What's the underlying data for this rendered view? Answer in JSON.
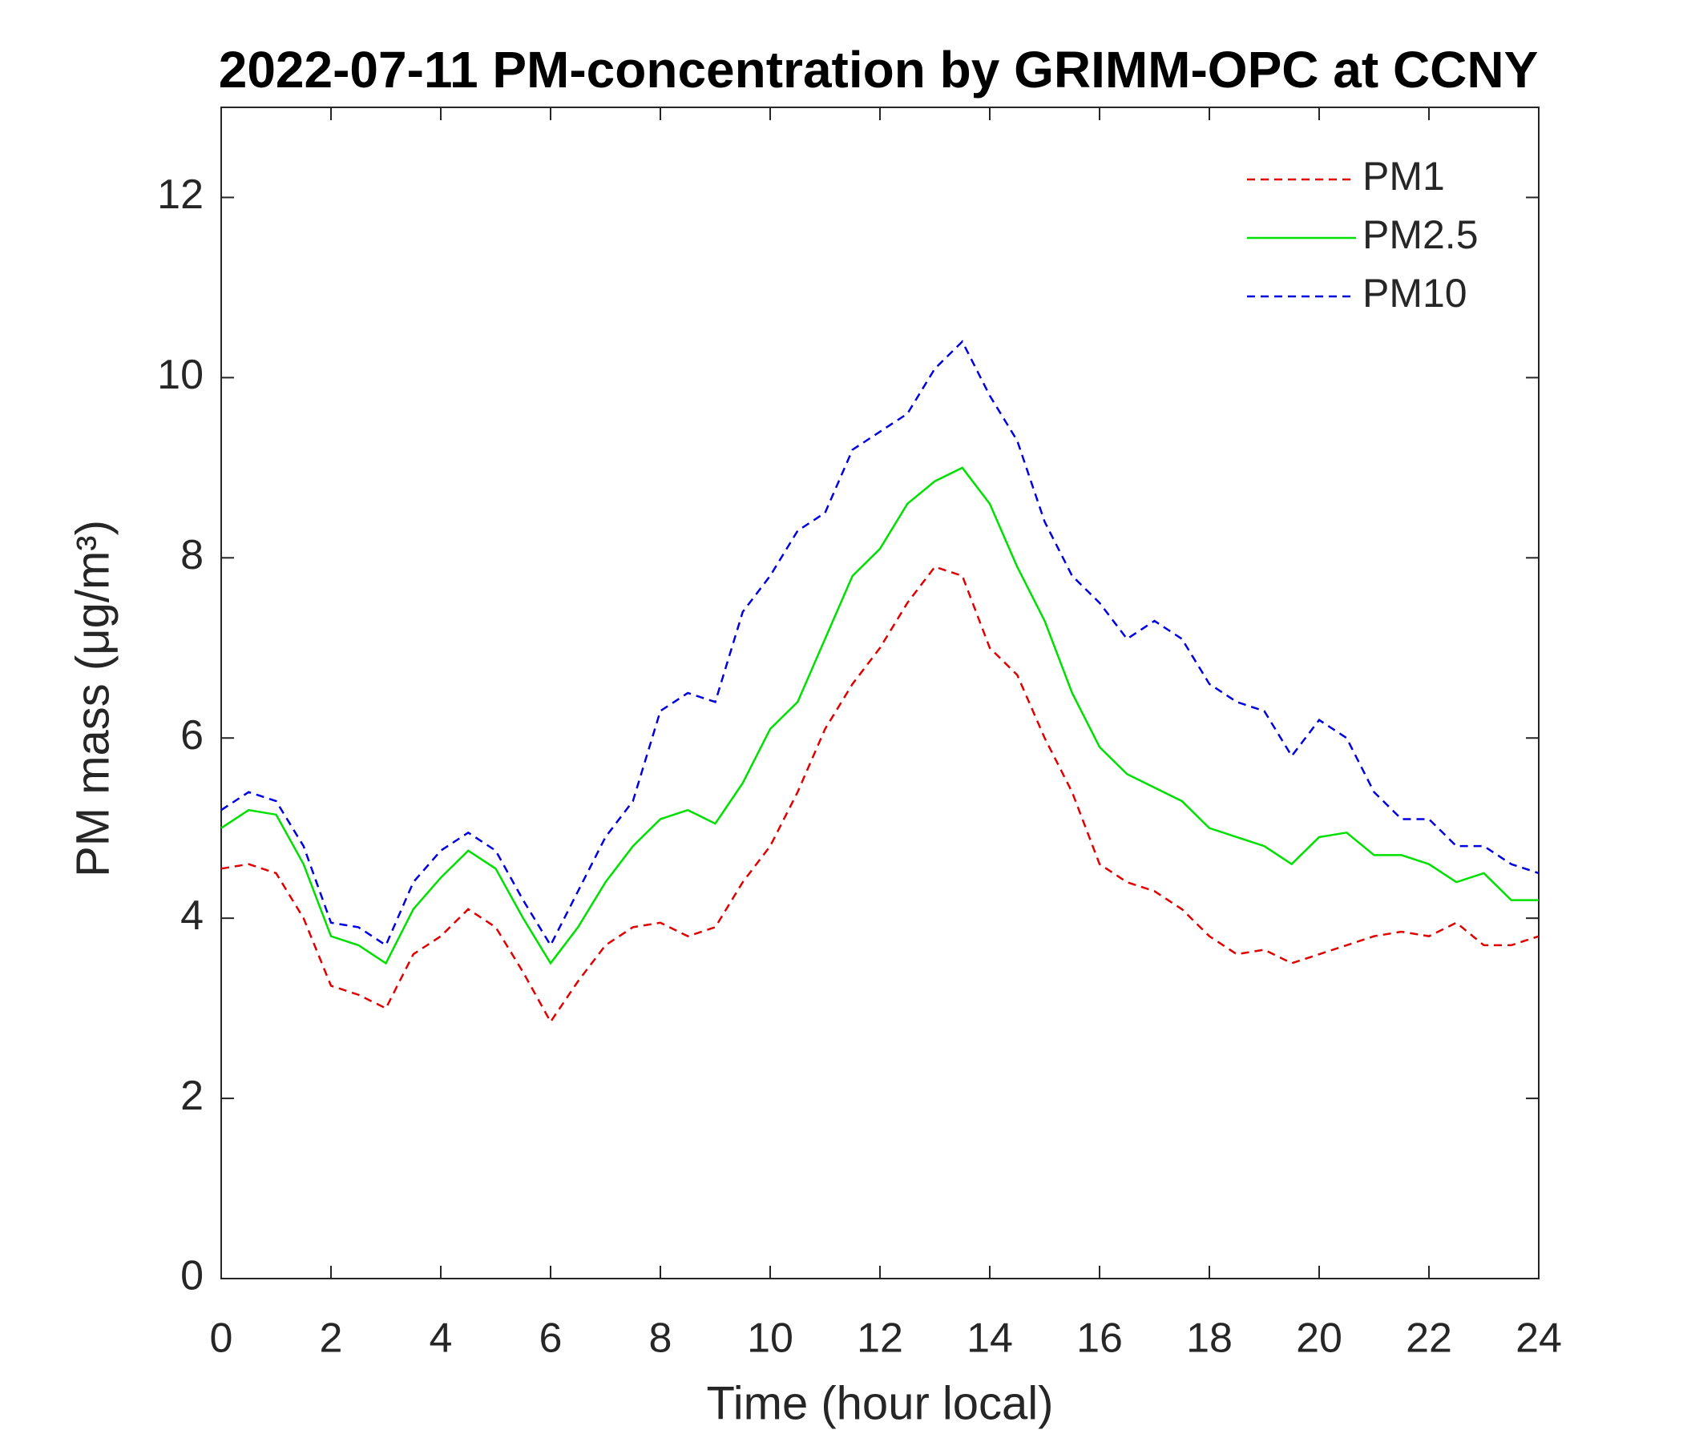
{
  "chart_data": {
    "type": "line",
    "title": "2022-07-11 PM-concentration by GRIMM-OPC at CCNY",
    "xlabel": "Time (hour local)",
    "ylabel": "PM mass (μg/m³)",
    "x": [
      0,
      0.5,
      1,
      1.5,
      2,
      2.5,
      3,
      3.5,
      4,
      4.5,
      5,
      5.5,
      6,
      6.5,
      7,
      7.5,
      8,
      8.5,
      9,
      9.5,
      10,
      10.5,
      11,
      11.5,
      12,
      12.5,
      13,
      13.5,
      14,
      14.5,
      15,
      15.5,
      16,
      16.5,
      17,
      17.5,
      18,
      18.5,
      19,
      19.5,
      20,
      20.5,
      21,
      21.5,
      22,
      22.5,
      23,
      23.5,
      24
    ],
    "series": [
      {
        "name": "PM1",
        "color": "#e00000",
        "linestyle": "dashed",
        "values": [
          4.55,
          4.6,
          4.5,
          4.0,
          3.25,
          3.15,
          3.0,
          3.6,
          3.8,
          4.1,
          3.9,
          3.4,
          2.85,
          3.3,
          3.7,
          3.9,
          3.95,
          3.8,
          3.9,
          4.4,
          4.8,
          5.4,
          6.1,
          6.6,
          7.0,
          7.5,
          7.9,
          7.8,
          7.0,
          6.7,
          6.0,
          5.4,
          4.6,
          4.4,
          4.3,
          4.1,
          3.8,
          3.6,
          3.65,
          3.5,
          3.6,
          3.7,
          3.8,
          3.85,
          3.8,
          3.95,
          3.7,
          3.7,
          3.8
        ]
      },
      {
        "name": "PM2.5",
        "color": "#00e000",
        "linestyle": "solid",
        "values": [
          5.0,
          5.2,
          5.15,
          4.6,
          3.8,
          3.7,
          3.5,
          4.1,
          4.45,
          4.75,
          4.55,
          4.0,
          3.5,
          3.9,
          4.4,
          4.8,
          5.1,
          5.2,
          5.05,
          5.5,
          6.1,
          6.4,
          7.1,
          7.8,
          8.1,
          8.6,
          8.85,
          9.0,
          8.6,
          7.9,
          7.3,
          6.5,
          5.9,
          5.6,
          5.45,
          5.3,
          5.0,
          4.9,
          4.8,
          4.6,
          4.9,
          4.95,
          4.7,
          4.7,
          4.6,
          4.4,
          4.5,
          4.2,
          4.2
        ]
      },
      {
        "name": "PM10",
        "color": "#0000e0",
        "linestyle": "dashed",
        "values": [
          5.2,
          5.4,
          5.3,
          4.8,
          3.95,
          3.9,
          3.7,
          4.4,
          4.75,
          4.95,
          4.75,
          4.2,
          3.7,
          4.3,
          4.9,
          5.3,
          6.3,
          6.5,
          6.4,
          7.4,
          7.8,
          8.3,
          8.5,
          9.2,
          9.4,
          9.6,
          10.1,
          10.4,
          9.8,
          9.3,
          8.4,
          7.8,
          7.5,
          7.1,
          7.3,
          7.1,
          6.6,
          6.4,
          6.3,
          5.8,
          6.2,
          6.0,
          5.4,
          5.1,
          5.1,
          4.8,
          4.8,
          4.6,
          4.5
        ]
      }
    ],
    "xlim": [
      0,
      24
    ],
    "xticks": [
      0,
      2,
      4,
      6,
      8,
      10,
      12,
      14,
      16,
      18,
      20,
      22,
      24
    ],
    "ylim": [
      0,
      13
    ],
    "yticks": [
      0,
      2,
      4,
      6,
      8,
      10,
      12
    ],
    "legend": "upper right"
  }
}
